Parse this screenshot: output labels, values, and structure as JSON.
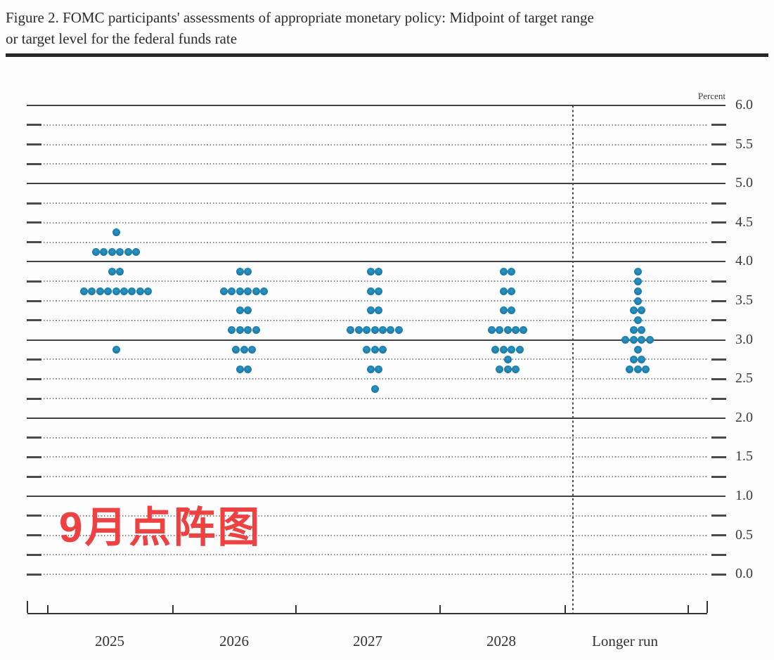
{
  "figure": {
    "title_line1": "Figure 2. FOMC participants' assessments of appropriate monetary policy: Midpoint of target range",
    "title_line2": "or target level for the federal funds rate",
    "unit_label": "Percent"
  },
  "annotation": {
    "text": "9月点阵图",
    "color": "#ee4141"
  },
  "colors": {
    "dot": "#1d7fae",
    "solid_gridline": "#414141",
    "dotted_gridline": "#8d8d8d",
    "axis": "#333333"
  },
  "chart_data": {
    "type": "scatter",
    "subtype": "fomc-dot-plot",
    "title": "FOMC participants' assessments of appropriate monetary policy: Midpoint of target range or target level for the federal funds rate",
    "xlabel": "",
    "ylabel": "Percent",
    "ylim": [
      0.0,
      6.0
    ],
    "y_minor_step": 0.25,
    "grid": "dotted-quarters-solid-integers",
    "legend": "none",
    "categories": [
      "2025",
      "2026",
      "2027",
      "2028",
      "Longer run"
    ],
    "y_ticks": [
      {
        "value": 6.0,
        "label": "6.0"
      },
      {
        "value": 5.5,
        "label": "5.5"
      },
      {
        "value": 5.0,
        "label": "5.0"
      },
      {
        "value": 4.5,
        "label": "4.5"
      },
      {
        "value": 4.0,
        "label": "4.0"
      },
      {
        "value": 3.5,
        "label": "3.5"
      },
      {
        "value": 3.0,
        "label": "3.0"
      },
      {
        "value": 2.5,
        "label": "2.5"
      },
      {
        "value": 2.0,
        "label": "2.0"
      },
      {
        "value": 1.5,
        "label": "1.5"
      },
      {
        "value": 1.0,
        "label": "1.0"
      },
      {
        "value": 0.5,
        "label": "0.5"
      },
      {
        "value": 0.0,
        "label": "0.0"
      }
    ],
    "series": [
      {
        "name": "2025",
        "dots": [
          {
            "rate": 4.375,
            "count": 1
          },
          {
            "rate": 4.125,
            "count": 6
          },
          {
            "rate": 3.875,
            "count": 2
          },
          {
            "rate": 3.625,
            "count": 9
          },
          {
            "rate": 2.875,
            "count": 1
          }
        ]
      },
      {
        "name": "2026",
        "dots": [
          {
            "rate": 3.875,
            "count": 2
          },
          {
            "rate": 3.625,
            "count": 6
          },
          {
            "rate": 3.375,
            "count": 2
          },
          {
            "rate": 3.125,
            "count": 4
          },
          {
            "rate": 2.875,
            "count": 3
          },
          {
            "rate": 2.625,
            "count": 2
          }
        ]
      },
      {
        "name": "2027",
        "dots": [
          {
            "rate": 3.875,
            "count": 2
          },
          {
            "rate": 3.625,
            "count": 2
          },
          {
            "rate": 3.375,
            "count": 2
          },
          {
            "rate": 3.125,
            "count": 7
          },
          {
            "rate": 2.875,
            "count": 3
          },
          {
            "rate": 2.625,
            "count": 2
          },
          {
            "rate": 2.375,
            "count": 1
          }
        ]
      },
      {
        "name": "2028",
        "dots": [
          {
            "rate": 3.875,
            "count": 2
          },
          {
            "rate": 3.625,
            "count": 2
          },
          {
            "rate": 3.375,
            "count": 2
          },
          {
            "rate": 3.125,
            "count": 5
          },
          {
            "rate": 2.875,
            "count": 4
          },
          {
            "rate": 2.75,
            "count": 1
          },
          {
            "rate": 2.625,
            "count": 3
          }
        ]
      },
      {
        "name": "Longer run",
        "dots": [
          {
            "rate": 3.875,
            "count": 1
          },
          {
            "rate": 3.75,
            "count": 1
          },
          {
            "rate": 3.625,
            "count": 1
          },
          {
            "rate": 3.5,
            "count": 1
          },
          {
            "rate": 3.375,
            "count": 2
          },
          {
            "rate": 3.25,
            "count": 1
          },
          {
            "rate": 3.125,
            "count": 2
          },
          {
            "rate": 3.0,
            "count": 4
          },
          {
            "rate": 2.875,
            "count": 1
          },
          {
            "rate": 2.75,
            "count": 2
          },
          {
            "rate": 2.625,
            "count": 3
          }
        ]
      }
    ]
  }
}
